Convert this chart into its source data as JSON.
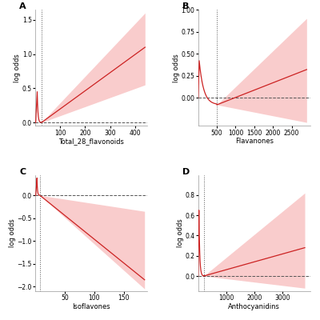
{
  "panels": [
    {
      "label": "A",
      "xlabel": "Total_28_flavonoids",
      "ylabel": "log odds",
      "xlim": [
        0,
        450
      ],
      "ylim": [
        -0.05,
        1.65
      ],
      "yticks": [
        0.0,
        0.5,
        1.0,
        1.5
      ],
      "xticks": [
        100,
        200,
        300,
        400
      ],
      "vline_x": 25,
      "spike_x0": 2,
      "spike_peak_x": 8,
      "spike_peak_y": 0.45,
      "linear_start_x": 25,
      "linear_end_x": 440,
      "linear_start_y": 0.0,
      "linear_end_y": 1.1,
      "ci_lower_start": 0.0,
      "ci_lower_end": 0.55,
      "ci_upper_start": 0.0,
      "ci_upper_end": 1.6
    },
    {
      "label": "B",
      "xlabel": "Flavanones",
      "ylabel": "log odds",
      "xlim": [
        0,
        3000
      ],
      "ylim": [
        -0.32,
        1.0
      ],
      "yticks": [
        0.0,
        0.25,
        0.5,
        0.75,
        1.0
      ],
      "xticks": [
        500,
        1000,
        1500,
        2000,
        2500
      ],
      "vline_x": 500,
      "spike_x0": 5,
      "spike_peak_x": 30,
      "spike_peak_y": 0.42,
      "valley_x": 500,
      "valley_y": -0.08,
      "linear_end_x": 2900,
      "linear_end_y": 0.32,
      "ci_lower_start": 0.0,
      "ci_lower_end": -0.28,
      "ci_upper_start": 0.0,
      "ci_upper_end": 0.9
    },
    {
      "label": "C",
      "xlabel": "Isoflavones",
      "ylabel": "log odds",
      "xlim": [
        0,
        190
      ],
      "ylim": [
        -2.1,
        0.45
      ],
      "yticks": [
        -2.0,
        -1.5,
        -1.0,
        -0.5,
        0.0
      ],
      "xticks": [
        50,
        100,
        150
      ],
      "vline_x": 8,
      "spike_x0": 1,
      "spike_peak_x": 3,
      "spike_peak_y": 0.38,
      "linear_start_x": 8,
      "linear_end_x": 185,
      "linear_start_y": 0.0,
      "linear_end_y": -1.85,
      "ci_lower_start": 0.0,
      "ci_lower_end": -2.05,
      "ci_upper_start": 0.0,
      "ci_upper_end": -0.35
    },
    {
      "label": "D",
      "xlabel": "Anthocyanidins",
      "ylabel": "log odds",
      "xlim": [
        0,
        4000
      ],
      "ylim": [
        -0.15,
        1.0
      ],
      "yticks": [
        0.0,
        0.2,
        0.4,
        0.6,
        0.8
      ],
      "xticks": [
        1000,
        2000,
        3000
      ],
      "vline_x": 200,
      "spike_x0": 5,
      "spike_peak_x": 30,
      "spike_peak_y": 0.65,
      "linear_start_x": 200,
      "linear_end_x": 3800,
      "linear_start_y": 0.0,
      "linear_end_y": 0.28,
      "ci_lower_start": 0.0,
      "ci_lower_end": -0.12,
      "ci_upper_start": 0.0,
      "ci_upper_end": 0.82
    }
  ],
  "line_color": "#CC2222",
  "fill_color": "#F5AAAA",
  "fill_alpha": 0.6,
  "dashed_color": "#555555",
  "vline_color": "#555555",
  "bg_color": "#ffffff",
  "label_fontsize": 6,
  "tick_fontsize": 5.5,
  "panel_label_fontsize": 8
}
